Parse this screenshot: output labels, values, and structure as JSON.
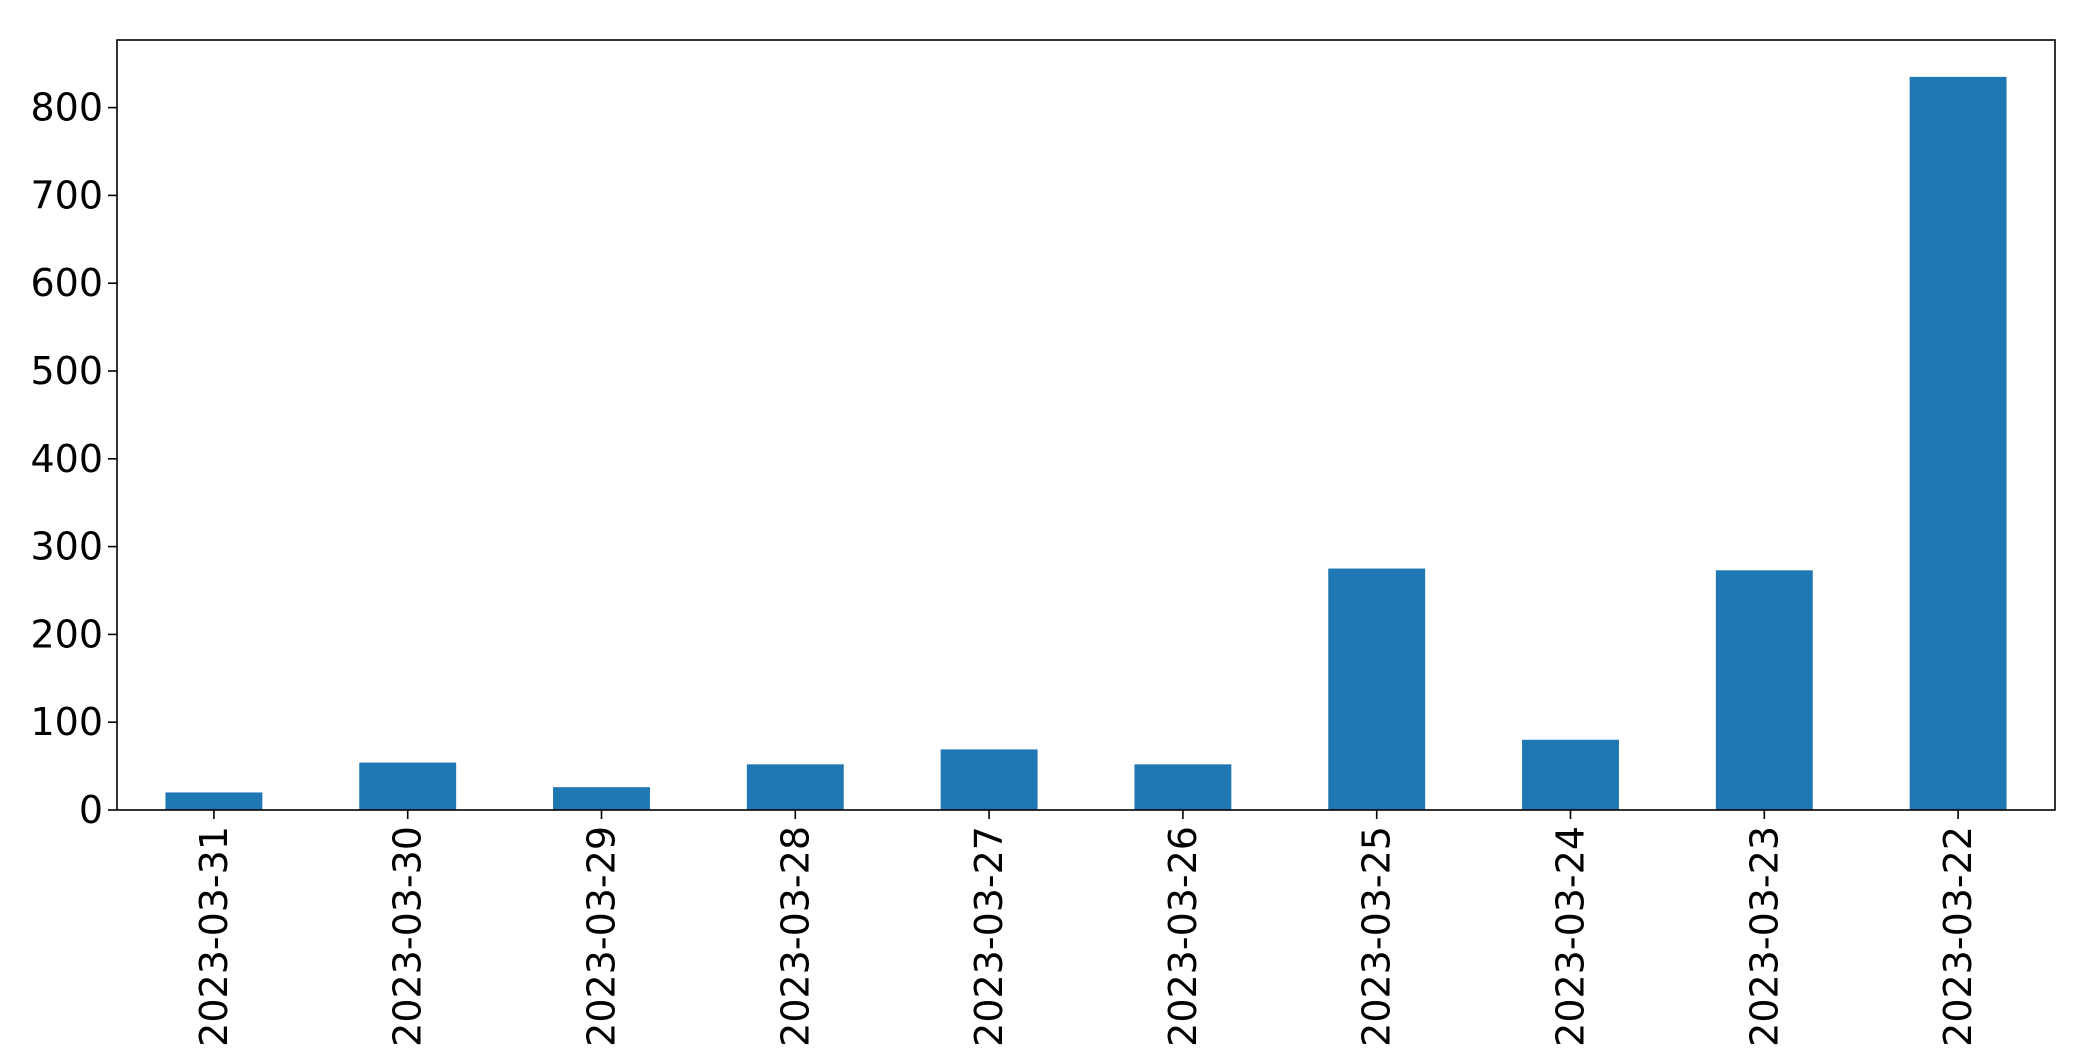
{
  "chart_data": {
    "type": "bar",
    "title": "",
    "xlabel": "",
    "ylabel": "",
    "categories": [
      "2023-03-31",
      "2023-03-30",
      "2023-03-29",
      "2023-03-28",
      "2023-03-27",
      "2023-03-26",
      "2023-03-25",
      "2023-03-24",
      "2023-03-23",
      "2023-03-22"
    ],
    "values": [
      20,
      54,
      26,
      52,
      69,
      52,
      275,
      80,
      273,
      835
    ],
    "ylim": [
      0,
      877
    ],
    "yticks": [
      0,
      100,
      200,
      300,
      400,
      500,
      600,
      700,
      800
    ],
    "bar_color": "#1f77b4",
    "grid": false,
    "legend": "none"
  }
}
